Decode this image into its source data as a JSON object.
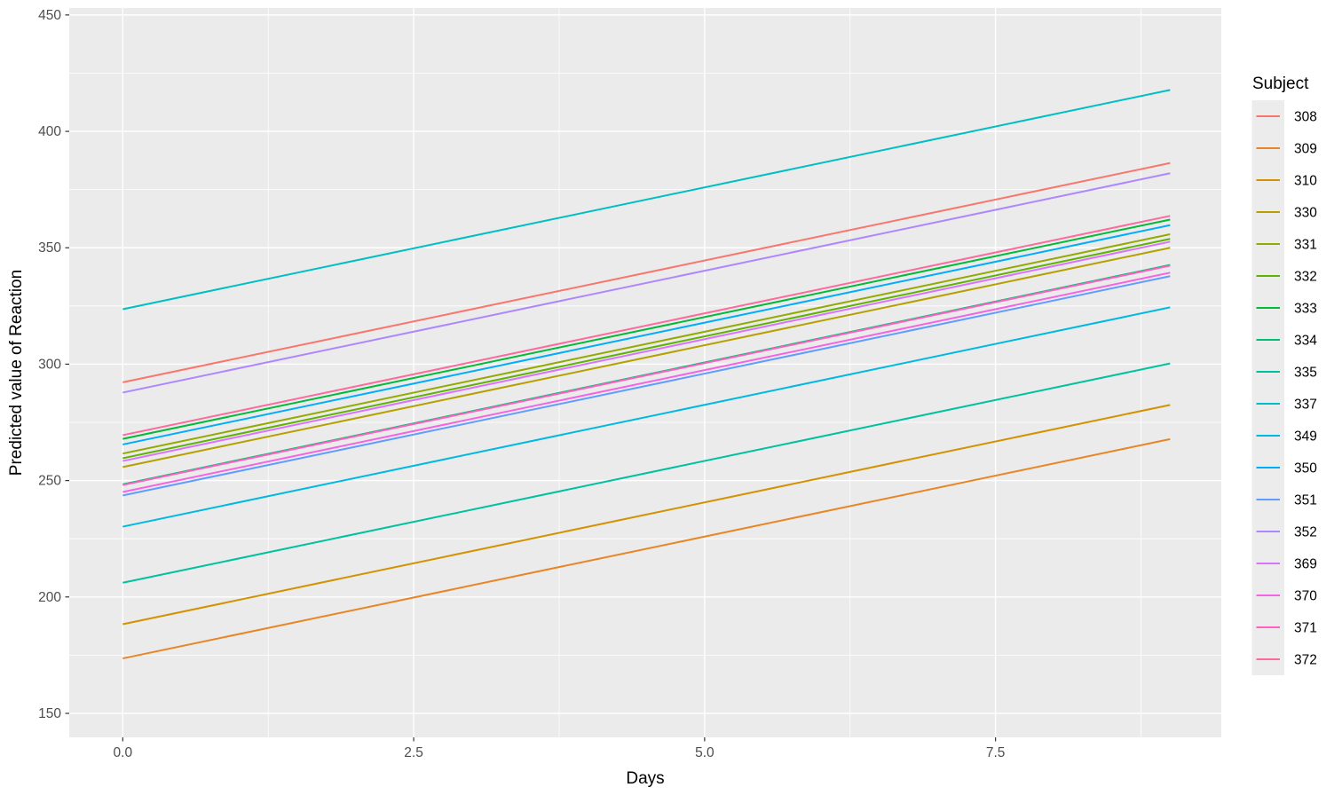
{
  "chart_data": {
    "type": "line",
    "title": "",
    "xlabel": "Days",
    "ylabel": "Predicted value of Reaction",
    "legend_title": "Subject",
    "legend_position": "right",
    "grid": true,
    "xlim": [
      -0.46,
      9.44
    ],
    "ylim": [
      139.7,
      453.0
    ],
    "x_tick_values": [
      0.0,
      2.5,
      5.0,
      7.5
    ],
    "x_tick_labels": [
      "0.0",
      "2.5",
      "5.0",
      "7.5"
    ],
    "x_minor_ticks": [
      1.25,
      3.75,
      6.25,
      8.75
    ],
    "y_tick_values": [
      150,
      200,
      250,
      300,
      350,
      400,
      450
    ],
    "y_tick_labels": [
      "150",
      "200",
      "250",
      "300",
      "350",
      "400",
      "450"
    ],
    "y_minor_ticks": [
      175,
      225,
      275,
      325,
      375,
      425
    ],
    "x_span_days": [
      0,
      9
    ],
    "slope_per_day": 10.47,
    "series": [
      {
        "subject": "308",
        "color": "#F8766D",
        "x": [
          0,
          9
        ],
        "y": [
          292.2,
          386.4
        ]
      },
      {
        "subject": "309",
        "color": "#E88526",
        "x": [
          0,
          9
        ],
        "y": [
          173.6,
          267.8
        ]
      },
      {
        "subject": "310",
        "color": "#D39200",
        "x": [
          0,
          9
        ],
        "y": [
          188.3,
          282.5
        ]
      },
      {
        "subject": "330",
        "color": "#B79F00",
        "x": [
          0,
          9
        ],
        "y": [
          255.8,
          350.0
        ]
      },
      {
        "subject": "331",
        "color": "#93AA00",
        "x": [
          0,
          9
        ],
        "y": [
          261.6,
          355.8
        ]
      },
      {
        "subject": "332",
        "color": "#5EB300",
        "x": [
          0,
          9
        ],
        "y": [
          259.6,
          353.8
        ]
      },
      {
        "subject": "333",
        "color": "#00BA38",
        "x": [
          0,
          9
        ],
        "y": [
          267.9,
          362.1
        ]
      },
      {
        "subject": "334",
        "color": "#00BF74",
        "x": [
          0,
          9
        ],
        "y": [
          248.4,
          342.6
        ]
      },
      {
        "subject": "335",
        "color": "#00C19F",
        "x": [
          0,
          9
        ],
        "y": [
          206.1,
          300.3
        ]
      },
      {
        "subject": "337",
        "color": "#00BFC4",
        "x": [
          0,
          9
        ],
        "y": [
          323.6,
          417.8
        ]
      },
      {
        "subject": "349",
        "color": "#00B9E3",
        "x": [
          0,
          9
        ],
        "y": [
          230.2,
          324.4
        ]
      },
      {
        "subject": "350",
        "color": "#00ADFA",
        "x": [
          0,
          9
        ],
        "y": [
          265.5,
          359.7
        ]
      },
      {
        "subject": "351",
        "color": "#619CFF",
        "x": [
          0,
          9
        ],
        "y": [
          243.6,
          337.8
        ]
      },
      {
        "subject": "352",
        "color": "#AE87FF",
        "x": [
          0,
          9
        ],
        "y": [
          287.8,
          382.0
        ]
      },
      {
        "subject": "369",
        "color": "#DB72FB",
        "x": [
          0,
          9
        ],
        "y": [
          258.4,
          352.6
        ]
      },
      {
        "subject": "370",
        "color": "#F564E3",
        "x": [
          0,
          9
        ],
        "y": [
          245.1,
          339.3
        ]
      },
      {
        "subject": "371",
        "color": "#FF61C3",
        "x": [
          0,
          9
        ],
        "y": [
          248.1,
          342.3
        ]
      },
      {
        "subject": "372",
        "color": "#FF699C",
        "x": [
          0,
          9
        ],
        "y": [
          269.5,
          363.7
        ]
      }
    ],
    "style": {
      "panel_bg": "#EBEBEB",
      "grid_color": "#FFFFFF",
      "tick_mark_color": "#333333",
      "axis_text_color": "#4D4D4D",
      "axis_title_color": "#000000",
      "legend_key_bg": "#ECECEC",
      "legend_text_color": "#000000"
    }
  }
}
